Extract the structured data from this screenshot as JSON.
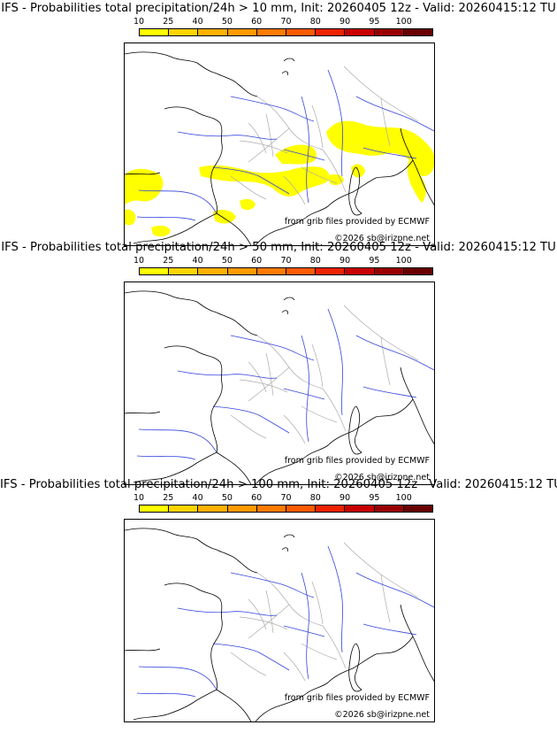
{
  "panels": [
    {
      "title": "IFS - Probabilities total precipitation/24h > 10 mm, Init: 20260405 12z - Valid: 20260415:12 TU",
      "has_rain": true
    },
    {
      "title": "IFS - Probabilities total precipitation/24h > 50 mm, Init: 20260405 12z - Valid: 20260415:12 TU",
      "has_rain": false
    },
    {
      "title": "IFS - Probabilities total precipitation/24h > 100 mm, Init: 20260405 12z - Valid: 20260415:12 TU",
      "has_rain": false
    }
  ],
  "legend": {
    "ticks": [
      "10",
      "25",
      "40",
      "50",
      "60",
      "70",
      "80",
      "90",
      "95",
      "100"
    ],
    "colors": [
      "#ffff00",
      "#ffd400",
      "#ffb000",
      "#ff9900",
      "#ff7a00",
      "#ff5a00",
      "#ee2200",
      "#c80000",
      "#9a0000",
      "#6a0000"
    ]
  },
  "credits": {
    "source": "from grib files provided by ECMWF",
    "copyright": "©2026 sb@irizpne.net"
  },
  "map_style": {
    "coast": "#000000",
    "rivers": "#3344dd",
    "borders": "#aaaaaa",
    "rain": "#ffff00"
  }
}
